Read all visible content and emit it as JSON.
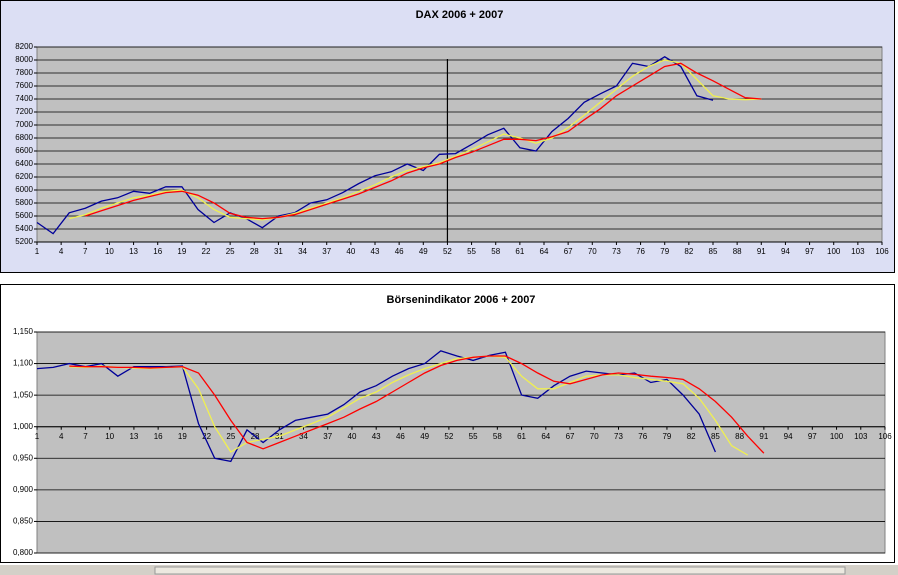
{
  "chart_data": [
    {
      "type": "line",
      "title": "DAX 2006 + 2007",
      "x": [
        1,
        3,
        5,
        7,
        9,
        11,
        13,
        15,
        17,
        19,
        21,
        23,
        25,
        27,
        29,
        31,
        33,
        35,
        37,
        39,
        41,
        43,
        45,
        47,
        49,
        51,
        53,
        55,
        57,
        59,
        61,
        63,
        65,
        67,
        69,
        71,
        73,
        75,
        77,
        79,
        81,
        83,
        85,
        87,
        89,
        91
      ],
      "xlim": [
        1,
        106
      ],
      "xticks": [
        1,
        4,
        7,
        10,
        13,
        16,
        19,
        22,
        25,
        28,
        31,
        34,
        37,
        40,
        43,
        46,
        49,
        52,
        55,
        58,
        61,
        64,
        67,
        70,
        73,
        76,
        79,
        82,
        85,
        88,
        91,
        94,
        97,
        100,
        103,
        106
      ],
      "ylim": [
        5200,
        8200
      ],
      "yticks": [
        5200,
        5400,
        5600,
        5800,
        6000,
        6200,
        6400,
        6600,
        6800,
        7000,
        7200,
        7400,
        7600,
        7800,
        8000,
        8200
      ],
      "grid": true,
      "marker_x": 52,
      "series": [
        {
          "color": "#000099",
          "values": [
            5500,
            5330,
            5650,
            5720,
            5830,
            5880,
            5980,
            5950,
            6050,
            6050,
            5700,
            5500,
            5650,
            5560,
            5420,
            5600,
            5650,
            5800,
            5850,
            5960,
            6100,
            6220,
            6280,
            6400,
            6300,
            6550,
            6560,
            6700,
            6850,
            6950,
            6650,
            6600,
            6900,
            7100,
            7350,
            7480,
            7600,
            7950,
            7900,
            8050,
            7900,
            7450,
            7380,
            null,
            null,
            null
          ]
        },
        {
          "color": "#f0f050",
          "values": [
            null,
            null,
            5560,
            5620,
            5720,
            5800,
            5880,
            5920,
            5980,
            6000,
            5880,
            5700,
            5580,
            5560,
            5540,
            5580,
            5640,
            5720,
            5800,
            5880,
            5980,
            6080,
            6200,
            6300,
            6360,
            6420,
            6520,
            6620,
            6740,
            6860,
            6800,
            6720,
            6800,
            6960,
            7150,
            7350,
            7550,
            7750,
            7900,
            8000,
            7950,
            7700,
            7450,
            7400,
            7390,
            7400
          ]
        },
        {
          "color": "#ff0000",
          "values": [
            null,
            null,
            null,
            5600,
            5680,
            5760,
            5840,
            5900,
            5960,
            5980,
            5920,
            5800,
            5640,
            5580,
            5560,
            5580,
            5620,
            5700,
            5780,
            5860,
            5940,
            6040,
            6140,
            6260,
            6340,
            6400,
            6500,
            6580,
            6680,
            6780,
            6780,
            6760,
            6820,
            6900,
            7080,
            7250,
            7450,
            7600,
            7750,
            7900,
            7950,
            7800,
            7680,
            7550,
            7420,
            7400
          ]
        }
      ]
    },
    {
      "type": "line",
      "title": "Börsenindikator 2006 + 2007",
      "x": [
        1,
        3,
        5,
        7,
        9,
        11,
        13,
        15,
        17,
        19,
        21,
        23,
        25,
        27,
        29,
        31,
        33,
        35,
        37,
        39,
        41,
        43,
        45,
        47,
        49,
        51,
        53,
        55,
        57,
        59,
        61,
        63,
        65,
        67,
        69,
        71,
        73,
        75,
        77,
        79,
        81,
        83,
        85,
        87,
        89,
        91
      ],
      "xlim": [
        1,
        106
      ],
      "xticks": [
        1,
        4,
        7,
        10,
        13,
        16,
        19,
        22,
        25,
        28,
        31,
        34,
        37,
        40,
        43,
        46,
        49,
        52,
        55,
        58,
        61,
        64,
        67,
        70,
        73,
        76,
        79,
        82,
        85,
        88,
        91,
        94,
        97,
        100,
        103,
        106
      ],
      "ylim": [
        0.8,
        1.15
      ],
      "yticks": [
        {
          "value": 0.8,
          "label": "0,800"
        },
        {
          "value": 0.85,
          "label": "0,850"
        },
        {
          "value": 0.9,
          "label": "0,900"
        },
        {
          "value": 0.95,
          "label": "0,950"
        },
        {
          "value": 1,
          "label": "1,000"
        },
        {
          "value": 1.05,
          "label": "1,050"
        },
        {
          "value": 1.1,
          "label": "1,100"
        },
        {
          "value": 1.15,
          "label": "1,150"
        }
      ],
      "grid": true,
      "x_axis_crosses": 1,
      "series": [
        {
          "color": "#000099",
          "values": [
            1.092,
            1.094,
            1.1,
            1.095,
            1.1,
            1.08,
            1.095,
            1.095,
            1.095,
            1.096,
            1.005,
            0.95,
            0.945,
            0.995,
            0.975,
            0.995,
            1.01,
            1.015,
            1.02,
            1.035,
            1.055,
            1.065,
            1.08,
            1.092,
            1.1,
            1.12,
            1.112,
            1.105,
            1.113,
            1.118,
            1.05,
            1.045,
            1.065,
            1.08,
            1.088,
            1.085,
            1.082,
            1.085,
            1.07,
            1.075,
            1.05,
            1.02,
            0.96,
            null,
            null,
            null
          ]
        },
        {
          "color": "#f0f050",
          "values": [
            null,
            null,
            1.095,
            1.094,
            1.096,
            1.094,
            1.093,
            1.092,
            1.094,
            1.095,
            1.06,
            1.0,
            0.96,
            0.975,
            0.98,
            0.985,
            0.995,
            1.005,
            1.015,
            1.03,
            1.045,
            1.055,
            1.07,
            1.082,
            1.092,
            1.1,
            1.108,
            1.11,
            1.112,
            1.11,
            1.08,
            1.06,
            1.06,
            1.07,
            1.08,
            1.082,
            1.082,
            1.078,
            1.075,
            1.072,
            1.068,
            1.045,
            1.01,
            0.97,
            0.955,
            null
          ]
        },
        {
          "color": "#ff0000",
          "values": [
            null,
            null,
            1.096,
            1.095,
            1.095,
            1.094,
            1.094,
            1.093,
            1.094,
            1.095,
            1.085,
            1.05,
            1.01,
            0.975,
            0.965,
            0.975,
            0.985,
            0.995,
            1.005,
            1.015,
            1.028,
            1.04,
            1.055,
            1.07,
            1.085,
            1.097,
            1.105,
            1.11,
            1.112,
            1.112,
            1.1,
            1.085,
            1.072,
            1.068,
            1.075,
            1.082,
            1.085,
            1.083,
            1.08,
            1.078,
            1.075,
            1.06,
            1.04,
            1.015,
            0.985,
            0.958
          ]
        }
      ]
    }
  ]
}
